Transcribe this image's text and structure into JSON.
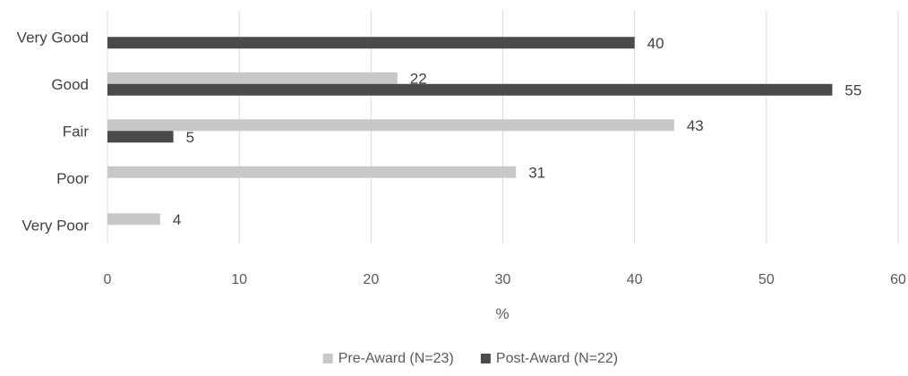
{
  "chart_data": {
    "type": "bar",
    "orientation": "horizontal",
    "categories": [
      "Very Good",
      "Good",
      "Fair",
      "Poor",
      "Very Poor"
    ],
    "series": [
      {
        "name": "Pre-Award (N=23)",
        "color": "#c8c8c8",
        "values": [
          null,
          22,
          43,
          31,
          4
        ]
      },
      {
        "name": "Post-Award (N=22)",
        "color": "#4a4a4a",
        "values": [
          40,
          55,
          5,
          null,
          null
        ]
      }
    ],
    "xlabel": "%",
    "ylabel": "",
    "xlim": [
      0,
      60
    ],
    "xticks": [
      0,
      10,
      20,
      30,
      40,
      50,
      60
    ],
    "grid": true,
    "legend_position": "bottom"
  }
}
